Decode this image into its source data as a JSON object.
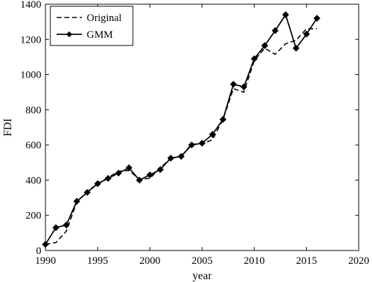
{
  "chart_data": {
    "type": "line",
    "title": "",
    "xlabel": "year",
    "ylabel": "FDI",
    "xlim": [
      1990,
      2020
    ],
    "ylim": [
      0,
      1400
    ],
    "xticks": [
      1990,
      1995,
      2000,
      2005,
      2010,
      2015,
      2020
    ],
    "yticks": [
      0,
      200,
      400,
      600,
      800,
      1000,
      1200,
      1400
    ],
    "grid": false,
    "legend_position": "top-left",
    "x": [
      1990,
      1991,
      1992,
      1993,
      1994,
      1995,
      1996,
      1997,
      1998,
      1999,
      2000,
      2001,
      2002,
      2003,
      2004,
      2005,
      2006,
      2007,
      2008,
      2009,
      2010,
      2011,
      2012,
      2013,
      2014,
      2015,
      2016
    ],
    "series": [
      {
        "name": "Original",
        "style": "dashed",
        "color": "#000000",
        "values": [
          35,
          45,
          110,
          275,
          335,
          380,
          415,
          450,
          455,
          405,
          410,
          470,
          525,
          535,
          605,
          605,
          630,
          745,
          920,
          900,
          1080,
          1150,
          1115,
          1175,
          1195,
          1260,
          1260
        ]
      },
      {
        "name": "GMM",
        "style": "solid-diamond",
        "color": "#000000",
        "values": [
          35,
          130,
          145,
          280,
          330,
          380,
          410,
          440,
          470,
          400,
          430,
          460,
          525,
          535,
          600,
          610,
          660,
          745,
          945,
          930,
          1090,
          1165,
          1250,
          1340,
          1150,
          1230,
          1320
        ]
      }
    ]
  }
}
